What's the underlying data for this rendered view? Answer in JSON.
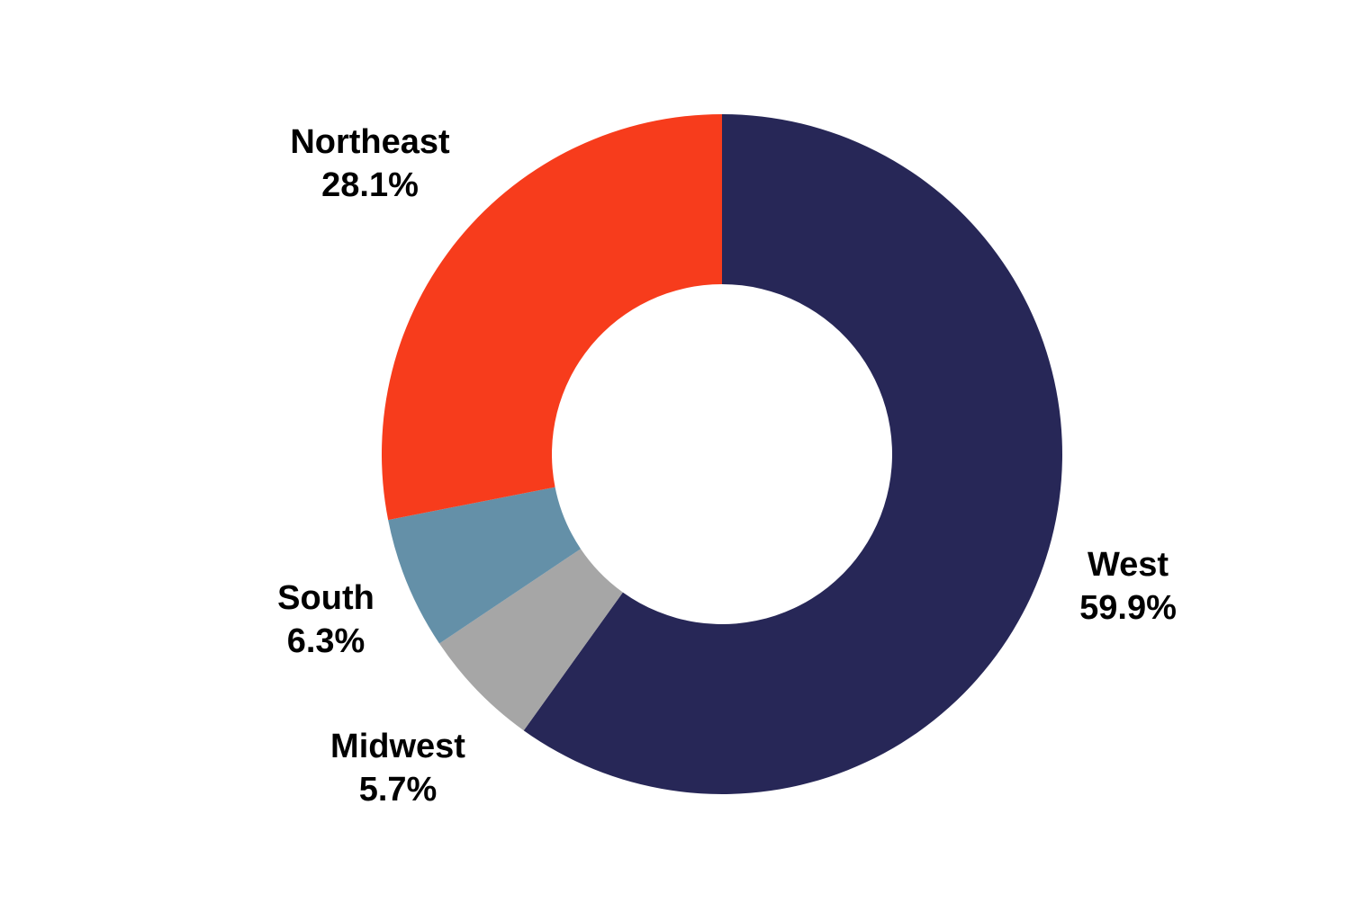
{
  "chart_data": {
    "type": "pie",
    "style": "donut",
    "title": "",
    "slices": [
      {
        "name": "West",
        "value": 59.9,
        "label": "59.9%",
        "color": "#272757"
      },
      {
        "name": "Midwest",
        "value": 5.7,
        "label": "5.7%",
        "color": "#a6a6a6"
      },
      {
        "name": "South",
        "value": 6.3,
        "label": "6.3%",
        "color": "#6490a8"
      },
      {
        "name": "Northeast",
        "value": 28.1,
        "label": "28.1%",
        "color": "#f73c1c"
      }
    ],
    "start": "12 o'clock",
    "direction": "clockwise",
    "legend": "none"
  }
}
